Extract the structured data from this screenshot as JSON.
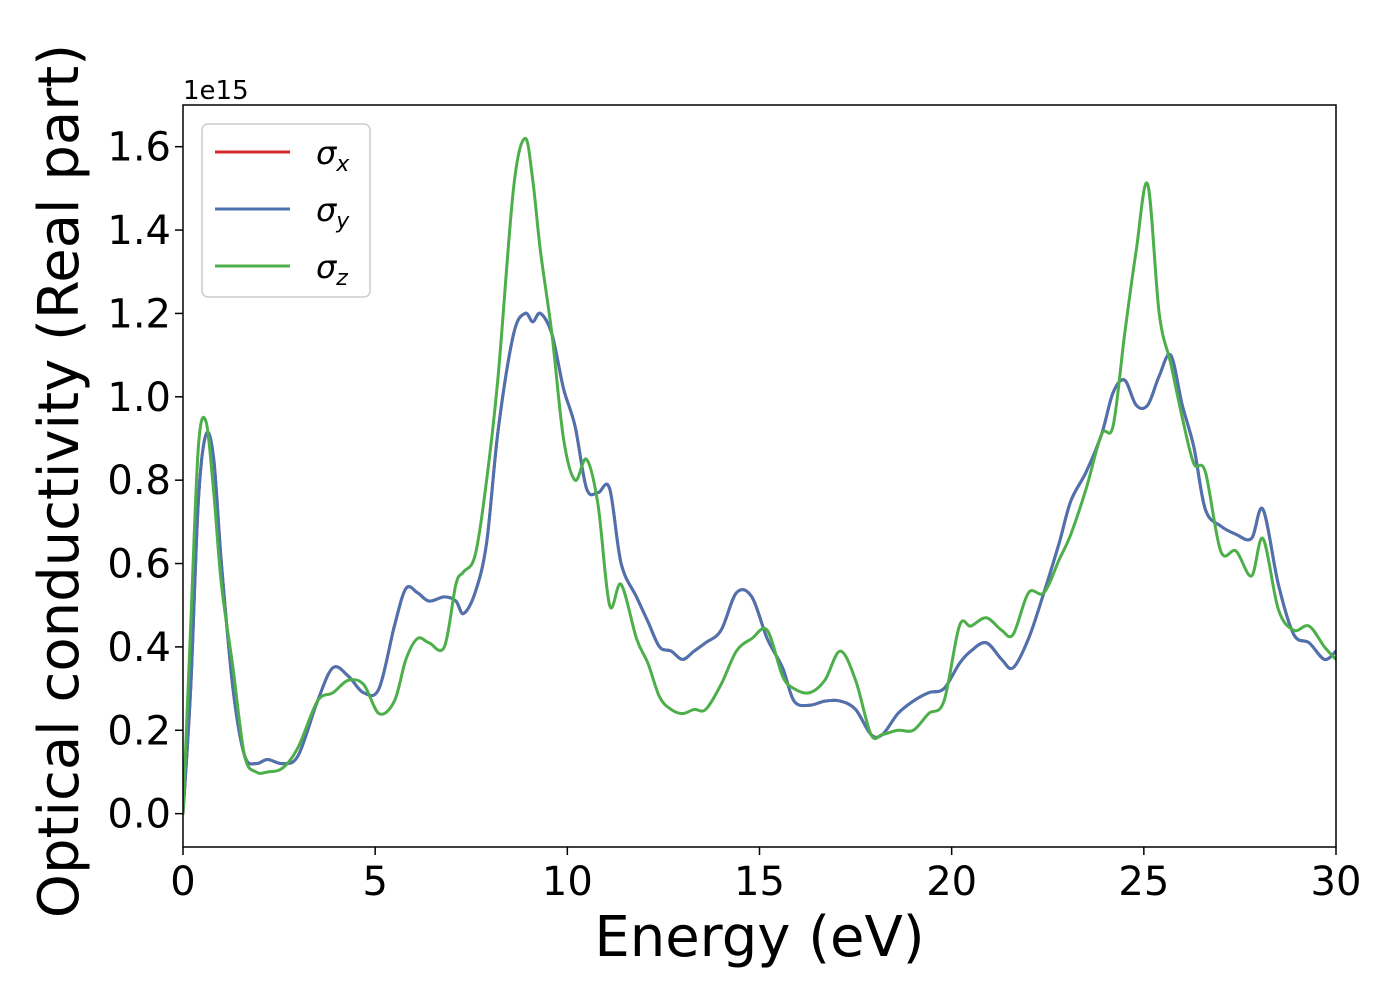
{
  "chart_data": {
    "type": "line",
    "xlabel": "Energy (eV)",
    "ylabel": "Optical conductivity (Real part)",
    "y_offset_label": "1e15",
    "y_scale": 1000000000000000.0,
    "xlim": [
      0,
      30
    ],
    "ylim": [
      -0.08,
      1.7
    ],
    "x_ticks": [
      0,
      5,
      10,
      15,
      20,
      25,
      30
    ],
    "x_tick_labels": [
      "0",
      "5",
      "10",
      "15",
      "20",
      "25",
      "30"
    ],
    "y_ticks": [
      0.0,
      0.2,
      0.4,
      0.6,
      0.8,
      1.0,
      1.2,
      1.4,
      1.6
    ],
    "y_tick_labels": [
      "0.0",
      "0.2",
      "0.4",
      "0.6",
      "0.8",
      "1.0",
      "1.2",
      "1.4",
      "1.6"
    ],
    "grid": false,
    "legend_position": "top-left",
    "series": [
      {
        "name": "σx",
        "name_base": "σ",
        "name_sub": "x",
        "color": "#d62728",
        "x": [
          0,
          0.2,
          0.4,
          0.6,
          0.8,
          1.0,
          1.3,
          1.6,
          1.9,
          2.2,
          2.6,
          3.0,
          3.5,
          3.9,
          4.3,
          4.7,
          5.1,
          5.5,
          5.8,
          6.1,
          6.4,
          6.8,
          7.1,
          7.3,
          7.6,
          7.9,
          8.2,
          8.6,
          8.9,
          9.1,
          9.3,
          9.6,
          9.9,
          10.2,
          10.5,
          10.8,
          11.1,
          11.4,
          11.8,
          12.1,
          12.4,
          12.7,
          13.0,
          13.3,
          13.6,
          14.0,
          14.4,
          14.8,
          15.2,
          15.6,
          15.9,
          16.3,
          16.7,
          17.1,
          17.5,
          17.9,
          18.2,
          18.6,
          19.0,
          19.4,
          19.8,
          20.2,
          20.5,
          20.9,
          21.3,
          21.6,
          22.0,
          22.4,
          22.8,
          23.1,
          23.5,
          23.9,
          24.2,
          24.5,
          24.8,
          25.1,
          25.4,
          25.7,
          26.0,
          26.3,
          26.6,
          27.0,
          27.4,
          27.8,
          28.1,
          28.5,
          28.9,
          29.3,
          29.7,
          30.0
        ],
        "values": [
          0.0,
          0.3,
          0.75,
          0.91,
          0.85,
          0.6,
          0.3,
          0.14,
          0.12,
          0.13,
          0.12,
          0.14,
          0.27,
          0.35,
          0.33,
          0.29,
          0.3,
          0.45,
          0.54,
          0.53,
          0.51,
          0.52,
          0.51,
          0.48,
          0.53,
          0.65,
          0.92,
          1.15,
          1.2,
          1.18,
          1.2,
          1.15,
          1.02,
          0.93,
          0.78,
          0.77,
          0.78,
          0.6,
          0.52,
          0.46,
          0.4,
          0.39,
          0.37,
          0.39,
          0.41,
          0.44,
          0.53,
          0.52,
          0.42,
          0.35,
          0.27,
          0.26,
          0.27,
          0.27,
          0.25,
          0.19,
          0.19,
          0.24,
          0.27,
          0.29,
          0.3,
          0.36,
          0.39,
          0.41,
          0.37,
          0.35,
          0.42,
          0.53,
          0.65,
          0.75,
          0.82,
          0.91,
          1.01,
          1.04,
          0.98,
          0.98,
          1.05,
          1.1,
          0.98,
          0.88,
          0.73,
          0.69,
          0.67,
          0.66,
          0.73,
          0.55,
          0.43,
          0.41,
          0.37,
          0.39
        ]
      },
      {
        "name": "σy",
        "name_base": "σ",
        "name_sub": "y",
        "color": "#4c72b0",
        "x": [
          0,
          0.2,
          0.4,
          0.6,
          0.8,
          1.0,
          1.3,
          1.6,
          1.9,
          2.2,
          2.6,
          3.0,
          3.5,
          3.9,
          4.3,
          4.7,
          5.1,
          5.5,
          5.8,
          6.1,
          6.4,
          6.8,
          7.1,
          7.3,
          7.6,
          7.9,
          8.2,
          8.6,
          8.9,
          9.1,
          9.3,
          9.6,
          9.9,
          10.2,
          10.5,
          10.8,
          11.1,
          11.4,
          11.8,
          12.1,
          12.4,
          12.7,
          13.0,
          13.3,
          13.6,
          14.0,
          14.4,
          14.8,
          15.2,
          15.6,
          15.9,
          16.3,
          16.7,
          17.1,
          17.5,
          17.9,
          18.2,
          18.6,
          19.0,
          19.4,
          19.8,
          20.2,
          20.5,
          20.9,
          21.3,
          21.6,
          22.0,
          22.4,
          22.8,
          23.1,
          23.5,
          23.9,
          24.2,
          24.5,
          24.8,
          25.1,
          25.4,
          25.7,
          26.0,
          26.3,
          26.6,
          27.0,
          27.4,
          27.8,
          28.1,
          28.5,
          28.9,
          29.3,
          29.7,
          30.0
        ],
        "values": [
          0.0,
          0.3,
          0.75,
          0.91,
          0.85,
          0.6,
          0.3,
          0.14,
          0.12,
          0.13,
          0.12,
          0.14,
          0.27,
          0.35,
          0.33,
          0.29,
          0.3,
          0.45,
          0.54,
          0.53,
          0.51,
          0.52,
          0.51,
          0.48,
          0.53,
          0.65,
          0.92,
          1.15,
          1.2,
          1.18,
          1.2,
          1.15,
          1.02,
          0.93,
          0.78,
          0.77,
          0.78,
          0.6,
          0.52,
          0.46,
          0.4,
          0.39,
          0.37,
          0.39,
          0.41,
          0.44,
          0.53,
          0.52,
          0.42,
          0.35,
          0.27,
          0.26,
          0.27,
          0.27,
          0.25,
          0.19,
          0.19,
          0.24,
          0.27,
          0.29,
          0.3,
          0.36,
          0.39,
          0.41,
          0.37,
          0.35,
          0.42,
          0.53,
          0.65,
          0.75,
          0.82,
          0.91,
          1.01,
          1.04,
          0.98,
          0.98,
          1.05,
          1.1,
          0.98,
          0.88,
          0.73,
          0.69,
          0.67,
          0.66,
          0.73,
          0.55,
          0.43,
          0.41,
          0.37,
          0.39
        ]
      },
      {
        "name": "σz",
        "name_base": "σ",
        "name_sub": "z",
        "color": "#4daf4a",
        "x": [
          0,
          0.2,
          0.4,
          0.6,
          0.8,
          1.0,
          1.3,
          1.6,
          1.9,
          2.2,
          2.6,
          3.0,
          3.5,
          3.9,
          4.3,
          4.7,
          5.1,
          5.5,
          5.8,
          6.1,
          6.4,
          6.8,
          7.1,
          7.3,
          7.6,
          7.9,
          8.2,
          8.6,
          8.9,
          9.1,
          9.3,
          9.6,
          9.9,
          10.2,
          10.5,
          10.8,
          11.1,
          11.4,
          11.8,
          12.1,
          12.4,
          12.7,
          13.0,
          13.3,
          13.6,
          14.0,
          14.4,
          14.8,
          15.2,
          15.6,
          15.9,
          16.3,
          16.7,
          17.1,
          17.5,
          17.9,
          18.2,
          18.6,
          19.0,
          19.4,
          19.8,
          20.2,
          20.5,
          20.9,
          21.3,
          21.6,
          22.0,
          22.4,
          22.8,
          23.1,
          23.5,
          23.9,
          24.2,
          24.5,
          24.8,
          25.1,
          25.4,
          25.7,
          26.0,
          26.3,
          26.6,
          27.0,
          27.4,
          27.8,
          28.1,
          28.5,
          28.9,
          29.3,
          29.7,
          30.0
        ],
        "values": [
          0.0,
          0.45,
          0.88,
          0.94,
          0.77,
          0.55,
          0.35,
          0.14,
          0.1,
          0.1,
          0.11,
          0.16,
          0.27,
          0.29,
          0.32,
          0.31,
          0.24,
          0.27,
          0.37,
          0.42,
          0.41,
          0.4,
          0.55,
          0.58,
          0.62,
          0.8,
          1.05,
          1.5,
          1.62,
          1.52,
          1.35,
          1.15,
          0.9,
          0.8,
          0.85,
          0.74,
          0.5,
          0.55,
          0.42,
          0.36,
          0.28,
          0.25,
          0.24,
          0.25,
          0.25,
          0.31,
          0.39,
          0.42,
          0.44,
          0.33,
          0.3,
          0.29,
          0.32,
          0.39,
          0.32,
          0.19,
          0.19,
          0.2,
          0.2,
          0.24,
          0.27,
          0.45,
          0.45,
          0.47,
          0.44,
          0.43,
          0.53,
          0.53,
          0.61,
          0.67,
          0.78,
          0.91,
          0.93,
          1.15,
          1.35,
          1.51,
          1.2,
          1.08,
          0.95,
          0.84,
          0.82,
          0.63,
          0.63,
          0.57,
          0.66,
          0.49,
          0.44,
          0.45,
          0.4,
          0.37
        ]
      }
    ]
  }
}
